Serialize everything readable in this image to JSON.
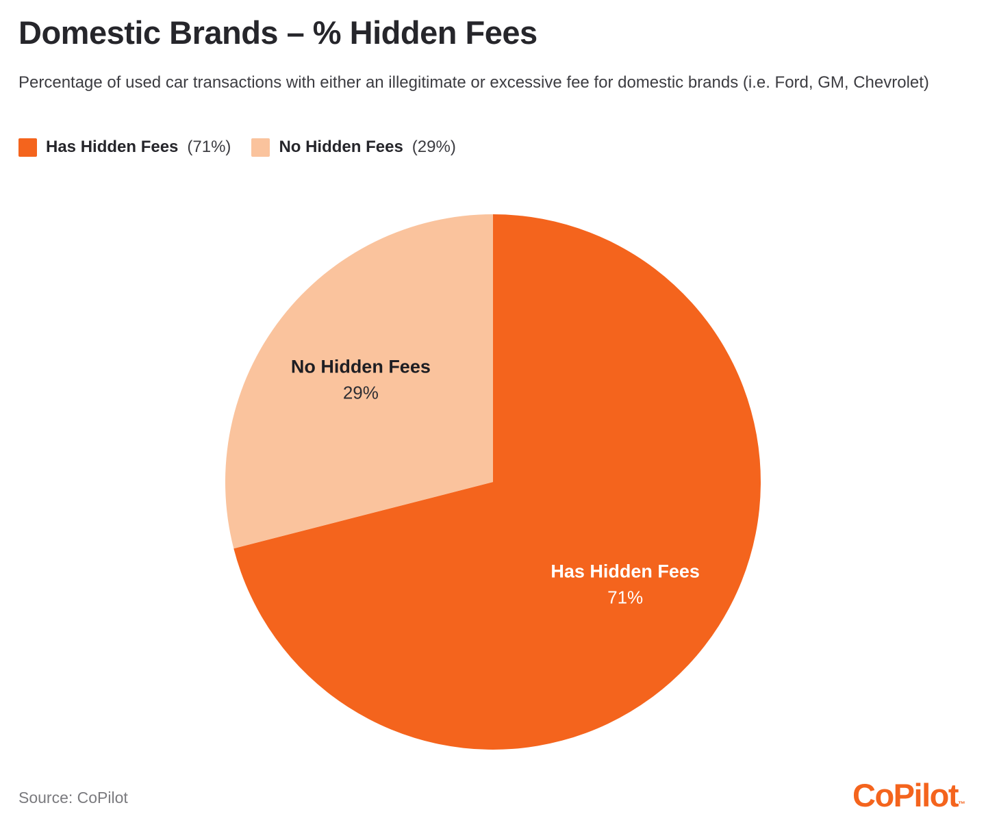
{
  "header": {
    "title": "Domestic Brands – % Hidden Fees",
    "subtitle": "Percentage of used car transactions with either an illegitimate or excessive fee for domestic brands (i.e. Ford, GM, Chevrolet)"
  },
  "legend": {
    "items": [
      {
        "label": "Has Hidden Fees",
        "value_label": "(71%)",
        "color": "#F4641D"
      },
      {
        "label": "No Hidden Fees",
        "value_label": "(29%)",
        "color": "#FAC39D"
      }
    ]
  },
  "chart_data": {
    "type": "pie",
    "title": "Domestic Brands – % Hidden Fees",
    "start_angle_deg": 0,
    "direction": "clockwise",
    "labels_inside": true,
    "slices": [
      {
        "label": "Has Hidden Fees",
        "value": 71,
        "pct_label": "71%",
        "color": "#F4641D",
        "text_color": "#FFFFFF"
      },
      {
        "label": "No Hidden Fees",
        "value": 29,
        "pct_label": "29%",
        "color": "#FAC39D",
        "text_color": "#1E1E23"
      }
    ]
  },
  "footer": {
    "source": "Source: CoPilot",
    "brand": "CoPilot",
    "brand_tm": "™",
    "brand_color": "#F4641D"
  }
}
